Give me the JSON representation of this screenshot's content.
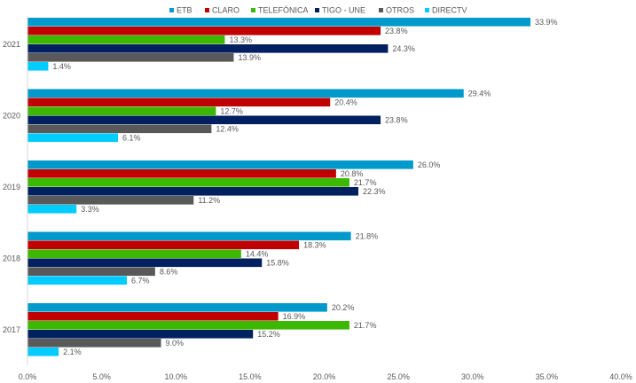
{
  "chart_data": {
    "type": "bar",
    "orientation": "horizontal",
    "title": "",
    "xlabel": "",
    "ylabel": "",
    "xlim": [
      0,
      40
    ],
    "x_ticks": [
      "0.0%",
      "5.0%",
      "10.0%",
      "15.0%",
      "20.0%",
      "25.0%",
      "30.0%",
      "35.0%",
      "40.0%"
    ],
    "x_tick_values": [
      0,
      5,
      10,
      15,
      20,
      25,
      30,
      35,
      40
    ],
    "grid": false,
    "legend_position": "top",
    "categories": [
      "2021",
      "2020",
      "2019",
      "2018",
      "2017"
    ],
    "series": [
      {
        "name": "ETB",
        "color": "#0099CC",
        "values": [
          33.9,
          29.4,
          26.0,
          21.8,
          20.2
        ],
        "labels": [
          "33.9%",
          "29.4%",
          "26.0%",
          "21.8%",
          "20.2%"
        ]
      },
      {
        "name": "CLARO",
        "color": "#C00000",
        "values": [
          23.8,
          20.4,
          20.8,
          18.3,
          16.9
        ],
        "labels": [
          "23.8%",
          "20.4%",
          "20.8%",
          "18.3%",
          "16.9%"
        ]
      },
      {
        "name": "TELEFÓNICA",
        "color": "#3CB800",
        "values": [
          13.3,
          12.7,
          21.7,
          14.4,
          21.7
        ],
        "labels": [
          "13.3%",
          "12.7%",
          "21.7%",
          "14.4%",
          "21.7%"
        ]
      },
      {
        "name": "TIGO - UNE",
        "color": "#002060",
        "values": [
          24.3,
          23.8,
          22.3,
          15.8,
          15.2
        ],
        "labels": [
          "24.3%",
          "23.8%",
          "22.3%",
          "15.8%",
          "15.2%"
        ]
      },
      {
        "name": "OTROS",
        "color": "#595959",
        "values": [
          13.9,
          12.4,
          11.2,
          8.6,
          9.0
        ],
        "labels": [
          "13.9%",
          "12.4%",
          "11.2%",
          "8.6%",
          "9.0%"
        ]
      },
      {
        "name": "DIRECTV",
        "color": "#00CCFF",
        "values": [
          1.4,
          6.1,
          3.3,
          6.7,
          2.1
        ],
        "labels": [
          "1.4%",
          "6.1%",
          "3.3%",
          "6.7%",
          "2.1%"
        ]
      }
    ]
  }
}
